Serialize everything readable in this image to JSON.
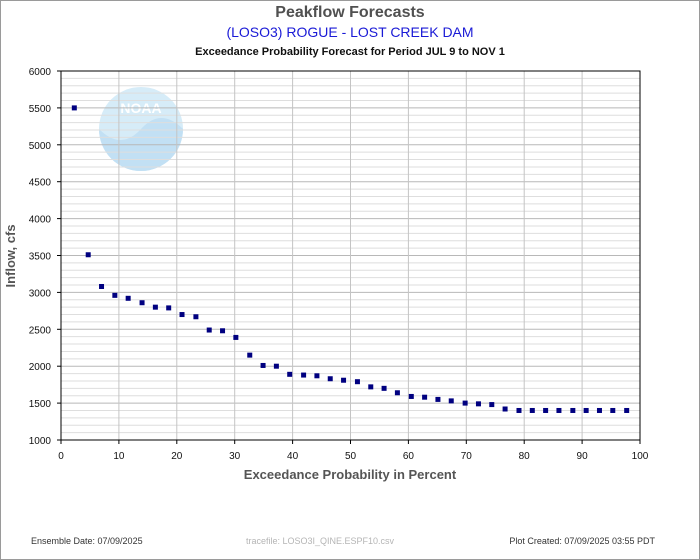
{
  "header": {
    "title": "Peakflow Forecasts",
    "subtitle": "(LOSO3) ROGUE - LOST CREEK DAM",
    "period": "Exceedance Probability Forecast for Period JUL 9 to NOV 1"
  },
  "watermark": {
    "text": "NOAA",
    "icon": "noaa-logo",
    "color": "#cfe6f5"
  },
  "footer": {
    "ensemble": "Ensemble Date: 07/09/2025",
    "tracefile": "tracefile: LOSO3I_QINE.ESPF10.csv",
    "created": "Plot Created: 07/09/2025 03:55 PDT"
  },
  "chart_data": {
    "type": "scatter",
    "xlabel": "Exceedance Probability in Percent",
    "ylabel": "Inflow, cfs",
    "xlim": [
      0,
      100
    ],
    "ylim": [
      1000,
      6000
    ],
    "xticks": [
      0,
      10,
      20,
      30,
      40,
      50,
      60,
      70,
      80,
      90,
      100
    ],
    "yticks": [
      1000,
      1500,
      2000,
      2500,
      3000,
      3500,
      4000,
      4500,
      5000,
      5500,
      6000
    ],
    "grid": true,
    "marker_color": "#000080",
    "x": [
      2.3,
      4.7,
      7.0,
      9.3,
      11.6,
      14.0,
      16.3,
      18.6,
      20.9,
      23.3,
      25.6,
      27.9,
      30.2,
      32.6,
      34.9,
      37.2,
      39.5,
      41.9,
      44.2,
      46.5,
      48.8,
      51.2,
      53.5,
      55.8,
      58.1,
      60.5,
      62.8,
      65.1,
      67.4,
      69.8,
      72.1,
      74.4,
      76.7,
      79.1,
      81.4,
      83.7,
      86.0,
      88.4,
      90.7,
      93.0,
      95.3,
      97.7
    ],
    "y": [
      5500,
      3510,
      3080,
      2960,
      2920,
      2860,
      2800,
      2790,
      2700,
      2670,
      2490,
      2480,
      2390,
      2150,
      2010,
      2000,
      1890,
      1880,
      1870,
      1830,
      1810,
      1790,
      1720,
      1700,
      1640,
      1590,
      1580,
      1550,
      1530,
      1500,
      1490,
      1480,
      1420,
      1400,
      1400,
      1400,
      1400,
      1400,
      1400,
      1400,
      1400,
      1400
    ]
  }
}
